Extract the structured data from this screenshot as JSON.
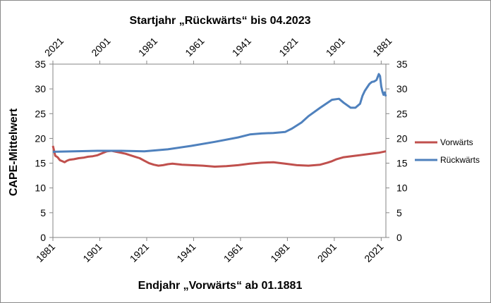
{
  "chart_data": {
    "type": "line",
    "title": "",
    "top_axis_title": "Startjahr „Rückwärts“ bis 04.2023",
    "bottom_axis_title": "Endjahr „Vorwärts“ ab 01.1881",
    "ylabel": "CAPE-Mittelwert",
    "ylim": [
      0,
      35
    ],
    "y_ticks": [
      "0",
      "5",
      "10",
      "15",
      "20",
      "25",
      "30",
      "35"
    ],
    "xlim": [
      1881,
      2023
    ],
    "x_ticks_bottom": [
      "1881",
      "1901",
      "1921",
      "1941",
      "1961",
      "1981",
      "2001",
      "2021"
    ],
    "x_ticks_top": [
      "2021",
      "2001",
      "1981",
      "1961",
      "1941",
      "1921",
      "1901",
      "1881"
    ],
    "grid": false,
    "legend_position": "right",
    "series": [
      {
        "name": "Vorwärts",
        "color": "#c0504d",
        "x": [
          1881,
          1881.5,
          1882,
          1883,
          1884,
          1885,
          1886,
          1887,
          1888,
          1890,
          1892,
          1894,
          1896,
          1898,
          1900,
          1902,
          1904,
          1906,
          1908,
          1910,
          1912,
          1914,
          1916,
          1918,
          1920,
          1922,
          1924,
          1926,
          1928,
          1930,
          1932,
          1934,
          1936,
          1940,
          1945,
          1950,
          1955,
          1960,
          1965,
          1970,
          1975,
          1980,
          1985,
          1990,
          1995,
          1998,
          2000,
          2002,
          2005,
          2010,
          2015,
          2020,
          2023
        ],
        "values": [
          18.5,
          17.5,
          16.5,
          16.2,
          15.6,
          15.4,
          15.2,
          15.5,
          15.7,
          15.8,
          16.0,
          16.1,
          16.3,
          16.4,
          16.6,
          17.0,
          17.4,
          17.5,
          17.3,
          17.1,
          16.9,
          16.6,
          16.3,
          16.0,
          15.5,
          15.0,
          14.7,
          14.5,
          14.6,
          14.8,
          14.9,
          14.8,
          14.7,
          14.6,
          14.5,
          14.3,
          14.4,
          14.6,
          14.9,
          15.1,
          15.2,
          14.9,
          14.6,
          14.5,
          14.7,
          15.1,
          15.4,
          15.8,
          16.2,
          16.5,
          16.8,
          17.1,
          17.4
        ]
      },
      {
        "name": "Rückwärts",
        "color": "#4f81bd",
        "x": [
          1881,
          1890,
          1900,
          1910,
          1920,
          1930,
          1940,
          1950,
          1960,
          1965,
          1970,
          1975,
          1980,
          1983,
          1987,
          1990,
          1995,
          2000,
          2003,
          2005,
          2008,
          2010,
          2012,
          2013,
          2014,
          2015,
          2016,
          2017,
          2018,
          2019,
          2020,
          2020.5,
          2021,
          2021.5,
          2022,
          2022.5,
          2023
        ],
        "values": [
          17.3,
          17.4,
          17.5,
          17.5,
          17.4,
          17.8,
          18.5,
          19.3,
          20.2,
          20.8,
          21.0,
          21.1,
          21.3,
          22.0,
          23.2,
          24.5,
          26.2,
          27.8,
          28.0,
          27.2,
          26.2,
          26.2,
          27.0,
          28.6,
          29.6,
          30.3,
          31.0,
          31.4,
          31.5,
          31.8,
          33.0,
          32.6,
          30.5,
          29.5,
          28.8,
          29.3,
          28.5
        ]
      }
    ]
  }
}
